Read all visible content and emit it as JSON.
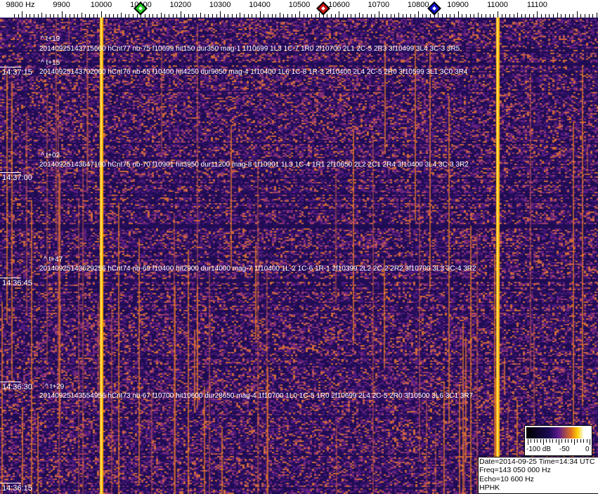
{
  "axis": {
    "unit_label": "9800 Hz",
    "labels": [
      "9900",
      "10000",
      "10100",
      "10200",
      "10300",
      "10400",
      "10500",
      "10600",
      "10700",
      "10800",
      "10900",
      "11000",
      "11100"
    ],
    "markers": [
      {
        "name": "green-marker",
        "freq": 10100,
        "color": "#22cc22"
      },
      {
        "name": "red-marker",
        "freq": 10560,
        "color": "#cc1111"
      },
      {
        "name": "blue-marker",
        "freq": 10840,
        "color": "#1111cc"
      }
    ]
  },
  "waterfall": {
    "colormap": [
      "#000000",
      "#1a0a50",
      "#5a1a8c",
      "#e07020",
      "#ffd000",
      "#ffffff"
    ],
    "strong_carriers_hz": [
      10000,
      11000
    ],
    "time_labels": [
      "14:37:15",
      "14:37:00",
      "14:36:45",
      "14:36:30",
      "14:36:15"
    ],
    "echoes": [
      {
        "tag": "^ t+19",
        "text": "20140925143715660 hCnt77 nb-75 f10699 hit150 dur350 mag-1 1f10699 1L3 1C-7 1R0 2f10700 2L1 2C-5 2R3 3f10499 3L4 3C-3 3R5"
      },
      {
        "tag": "^ t+15",
        "text": "20140925143702060 hCnt76 nb-65 f10400 hit4250 dur9650 mag-4 1f10400 1L6 1C-8 1R-3 2f10400 2L4 2C-5 2R0 3f10599 3L1 3C0 3R4"
      },
      {
        "tag": "^ t+02",
        "text": "20140925143647160 hCnt75 nb-70 f10901 hit3950 dur11200 mag-8 1f10901 1L3 1C-4 1R1 2f10650 2L2 2C1 2R4 3f10400 3L4 3C-3 3R2"
      },
      {
        "tag": "^ t+47",
        "text": "20140925143629256 hCnt74 nb-69 f10400 hit2900 dur14000 mag-7 1f10400 1L-2 1C-6 1R-1 2f10399 2L2 2C-2 2R2 3f10700 3L3 3C-4 3R2"
      },
      {
        "tag": "^ t+29",
        "text": "20140925143554956 hCnt73 nb-67 f10700 hit10600 dur28650 mag-4 1f10700 1L0 1C-5 1R0 2f10699 2L4 2C-5 2R0 3f10500 3L6 3C1 3R7"
      }
    ]
  },
  "scale": {
    "labels": [
      "-100 dB",
      "-50",
      "0"
    ]
  },
  "info": {
    "line1": "Date=2014-09-25 Time=14:34 UTC",
    "line2": "Freq=143 050 000 Hz",
    "line3": "Echo=10 600 Hz",
    "line4": "HPHK"
  }
}
